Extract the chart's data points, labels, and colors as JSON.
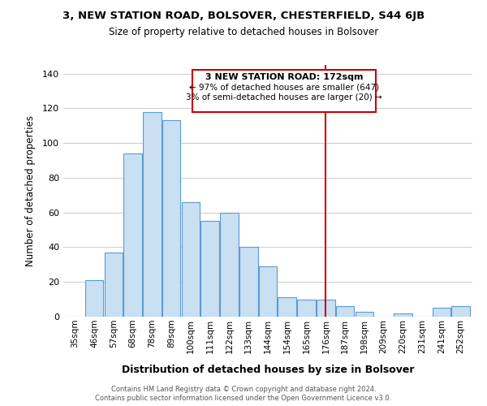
{
  "title": "3, NEW STATION ROAD, BOLSOVER, CHESTERFIELD, S44 6JB",
  "subtitle": "Size of property relative to detached houses in Bolsover",
  "xlabel": "Distribution of detached houses by size in Bolsover",
  "ylabel": "Number of detached properties",
  "bar_labels": [
    "35sqm",
    "46sqm",
    "57sqm",
    "68sqm",
    "78sqm",
    "89sqm",
    "100sqm",
    "111sqm",
    "122sqm",
    "133sqm",
    "144sqm",
    "154sqm",
    "165sqm",
    "176sqm",
    "187sqm",
    "198sqm",
    "209sqm",
    "220sqm",
    "231sqm",
    "241sqm",
    "252sqm"
  ],
  "bar_values": [
    0,
    21,
    37,
    94,
    118,
    113,
    66,
    55,
    60,
    40,
    29,
    11,
    10,
    10,
    6,
    3,
    0,
    2,
    0,
    5,
    6
  ],
  "bar_color": "#c9dff2",
  "bar_edge_color": "#5b9bd5",
  "ylim": [
    0,
    145
  ],
  "yticks": [
    0,
    20,
    40,
    60,
    80,
    100,
    120,
    140
  ],
  "vline_color": "#cc0000",
  "annotation_title": "3 NEW STATION ROAD: 172sqm",
  "annotation_line1": "← 97% of detached houses are smaller (647)",
  "annotation_line2": "3% of semi-detached houses are larger (20) →",
  "footer_line1": "Contains HM Land Registry data © Crown copyright and database right 2024.",
  "footer_line2": "Contains public sector information licensed under the Open Government Licence v3.0.",
  "background_color": "#ffffff",
  "grid_color": "#cccccc"
}
